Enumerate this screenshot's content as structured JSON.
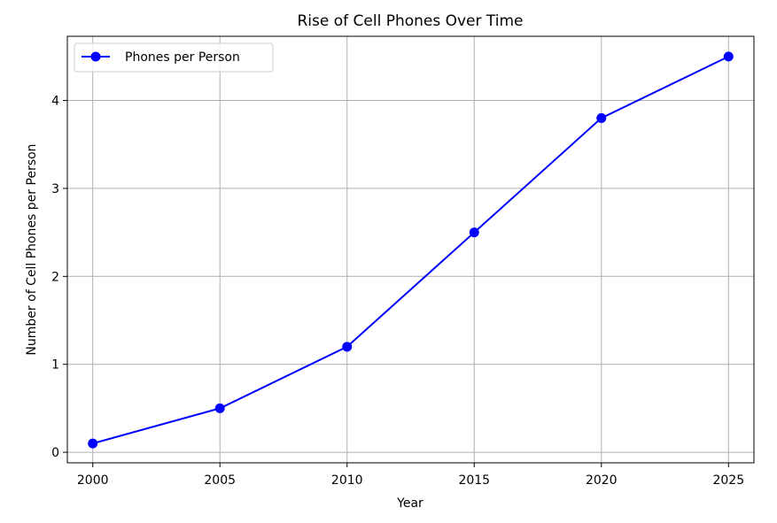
{
  "chart_data": {
    "type": "line",
    "title": "Rise of Cell Phones Over Time",
    "xlabel": "Year",
    "ylabel": "Number of Cell Phones per Person",
    "x": [
      2000,
      2005,
      2010,
      2015,
      2020,
      2025
    ],
    "series": [
      {
        "name": "Phones per Person",
        "values": [
          0.1,
          0.5,
          1.2,
          2.5,
          3.8,
          4.5
        ],
        "color": "#0000ff",
        "marker": "circle"
      }
    ],
    "xlim": [
      1999,
      2026
    ],
    "ylim": [
      -0.12,
      4.73
    ],
    "xticks": [
      2000,
      2005,
      2010,
      2015,
      2020,
      2025
    ],
    "yticks": [
      0,
      1,
      2,
      3,
      4
    ],
    "grid": true,
    "legend_position": "top-left"
  }
}
